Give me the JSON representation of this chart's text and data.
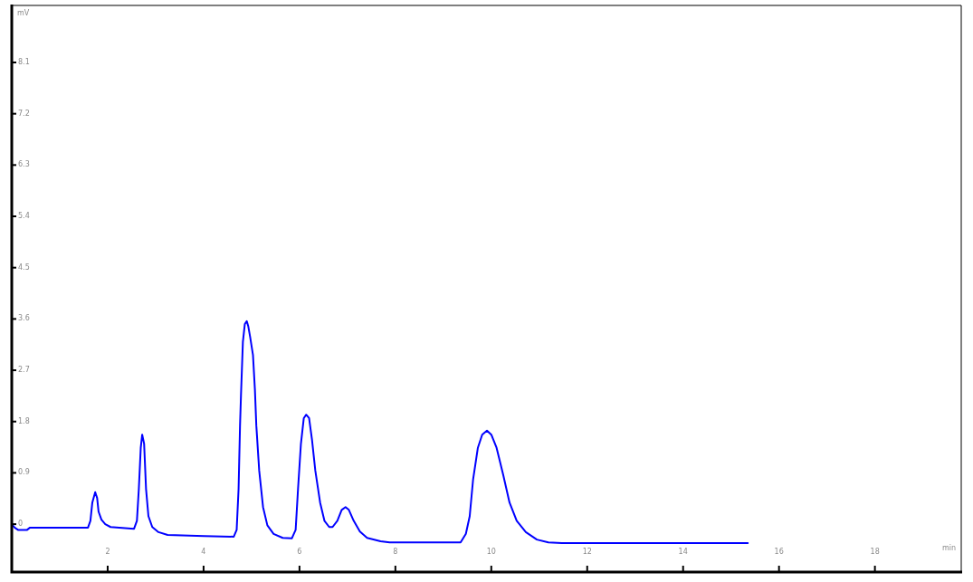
{
  "chart_data": {
    "type": "line",
    "xlabel": "min",
    "ylabel": "mV",
    "color": "#0000ff",
    "marker": "none",
    "legend": false,
    "grid": false,
    "xlim": [
      0,
      19.8
    ],
    "ylim": [
      -0.84,
      9.1
    ],
    "xticks": [
      2,
      4,
      6,
      8,
      10,
      12,
      14,
      16,
      18
    ],
    "yticks": [
      0,
      0.9,
      1.8,
      2.7,
      3.6,
      4.5,
      5.4,
      6.3,
      7.2,
      8.1
    ],
    "x": [
      0,
      0.06,
      0.13,
      0.32,
      0.38,
      1.59,
      1.64,
      1.68,
      1.74,
      1.78,
      1.81,
      1.87,
      1.95,
      2.06,
      2.55,
      2.61,
      2.65,
      2.69,
      2.72,
      2.76,
      2.8,
      2.85,
      2.93,
      3.06,
      3.25,
      4.01,
      4.63,
      4.69,
      4.73,
      4.76,
      4.78,
      4.82,
      4.86,
      4.9,
      4.93,
      4.97,
      5.03,
      5.07,
      5.1,
      5.16,
      5.24,
      5.33,
      5.46,
      5.65,
      5.84,
      5.92,
      5.97,
      6.03,
      6.09,
      6.14,
      6.2,
      6.26,
      6.33,
      6.43,
      6.52,
      6.62,
      6.69,
      6.79,
      6.88,
      6.96,
      7.03,
      7.13,
      7.26,
      7.41,
      7.69,
      7.88,
      9.36,
      9.47,
      9.55,
      9.62,
      9.72,
      9.81,
      9.91,
      10,
      10.11,
      10.25,
      10.38,
      10.53,
      10.72,
      10.95,
      11.19,
      11.47,
      15.35
    ],
    "values": [
      0,
      -0.06,
      -0.1,
      -0.1,
      -0.06,
      -0.06,
      0.06,
      0.38,
      0.56,
      0.46,
      0.22,
      0.08,
      0,
      -0.05,
      -0.08,
      0.06,
      0.62,
      1.34,
      1.57,
      1.41,
      0.62,
      0.14,
      -0.05,
      -0.14,
      -0.19,
      -0.21,
      -0.22,
      -0.1,
      0.62,
      1.73,
      2.26,
      3.2,
      3.51,
      3.56,
      3.48,
      3.29,
      2.97,
      2.37,
      1.73,
      0.94,
      0.3,
      -0.02,
      -0.17,
      -0.24,
      -0.25,
      -0.1,
      0.62,
      1.41,
      1.86,
      1.92,
      1.86,
      1.49,
      0.94,
      0.38,
      0.06,
      -0.05,
      -0.05,
      0.06,
      0.25,
      0.3,
      0.25,
      0.06,
      -0.13,
      -0.24,
      -0.3,
      -0.32,
      -0.32,
      -0.17,
      0.14,
      0.78,
      1.34,
      1.57,
      1.64,
      1.57,
      1.34,
      0.86,
      0.38,
      0.06,
      -0.14,
      -0.27,
      -0.32,
      -0.33,
      -0.33
    ]
  }
}
